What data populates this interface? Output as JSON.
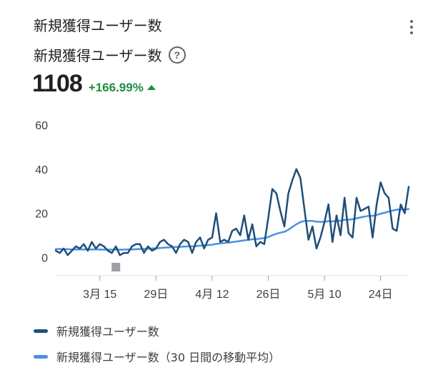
{
  "card": {
    "title": "新規獲得ユーザー数",
    "menu_icon": "more-vert-icon"
  },
  "metric": {
    "name": "新規獲得ユーザー数",
    "help_icon": "help-circle-icon",
    "help_glyph": "?",
    "value": "1108",
    "change": "+166.99%",
    "change_color": "#1e8e3e"
  },
  "chart_data": {
    "type": "line",
    "ylim": [
      -8,
      60
    ],
    "yticks": [
      0,
      20,
      40,
      60
    ],
    "x_start": "2024-03-04",
    "x_tick_labels": [
      {
        "date": "2024-03-15",
        "label": "3月 15"
      },
      {
        "date": "2024-03-29",
        "label": "29日"
      },
      {
        "date": "2024-04-12",
        "label": "4月 12"
      },
      {
        "date": "2024-04-26",
        "label": "26日"
      },
      {
        "date": "2024-05-10",
        "label": "5月 10"
      },
      {
        "date": "2024-05-24",
        "label": "24日"
      }
    ],
    "marker": {
      "date": "2024-03-19",
      "color": "#9aa0a6"
    },
    "grid": {
      "horizontal": false,
      "vertical": false
    },
    "series": [
      {
        "name": "新規獲得ユーザー数",
        "color": "#1f4e79",
        "values": [
          3,
          2,
          4,
          1,
          3,
          5,
          4,
          6,
          3,
          7,
          4,
          6,
          5,
          3,
          2,
          5,
          1,
          2,
          2,
          5,
          6,
          6,
          2,
          5,
          3,
          4,
          7,
          8,
          6,
          5,
          2,
          6,
          8,
          7,
          2,
          7,
          9,
          4,
          8,
          9,
          20,
          7,
          8,
          7,
          12,
          13,
          10,
          19,
          8,
          15,
          5,
          7,
          6,
          18,
          31,
          29,
          21,
          14,
          29,
          35,
          40,
          36,
          22,
          8,
          14,
          4,
          9,
          16,
          24,
          7,
          19,
          10,
          27,
          11,
          9,
          27,
          21,
          22,
          23,
          9,
          24,
          34,
          29,
          27,
          13,
          12,
          24,
          20,
          32
        ]
      },
      {
        "name": "新規獲得ユーザー数（30 日間の移動平均）",
        "color": "#4a90e2",
        "values": [
          3.8,
          3.8,
          3.7,
          3.7,
          3.6,
          3.6,
          3.6,
          3.6,
          3.6,
          3.6,
          3.6,
          3.6,
          3.5,
          3.5,
          3.5,
          3.5,
          3.5,
          3.5,
          3.6,
          3.6,
          3.7,
          3.8,
          3.8,
          3.9,
          4.0,
          4.1,
          4.2,
          4.4,
          4.5,
          4.6,
          4.7,
          4.8,
          4.9,
          5.0,
          5.0,
          5.1,
          5.3,
          5.4,
          5.6,
          5.7,
          6.1,
          6.3,
          6.5,
          6.7,
          6.9,
          7.2,
          7.4,
          7.7,
          7.9,
          8.2,
          8.3,
          8.5,
          8.7,
          9.2,
          10.0,
          10.7,
          11.2,
          11.6,
          12.5,
          13.8,
          15.0,
          16.0,
          16.5,
          16.5,
          16.5,
          16.2,
          16.1,
          16.1,
          16.4,
          16.3,
          16.5,
          16.6,
          17.0,
          17.1,
          17.3,
          17.7,
          18.1,
          18.5,
          18.8,
          18.8,
          19.2,
          19.8,
          20.2,
          20.8,
          21.2,
          21.6,
          21.8,
          21.7,
          21.9
        ]
      }
    ],
    "legend_position": "bottom"
  }
}
